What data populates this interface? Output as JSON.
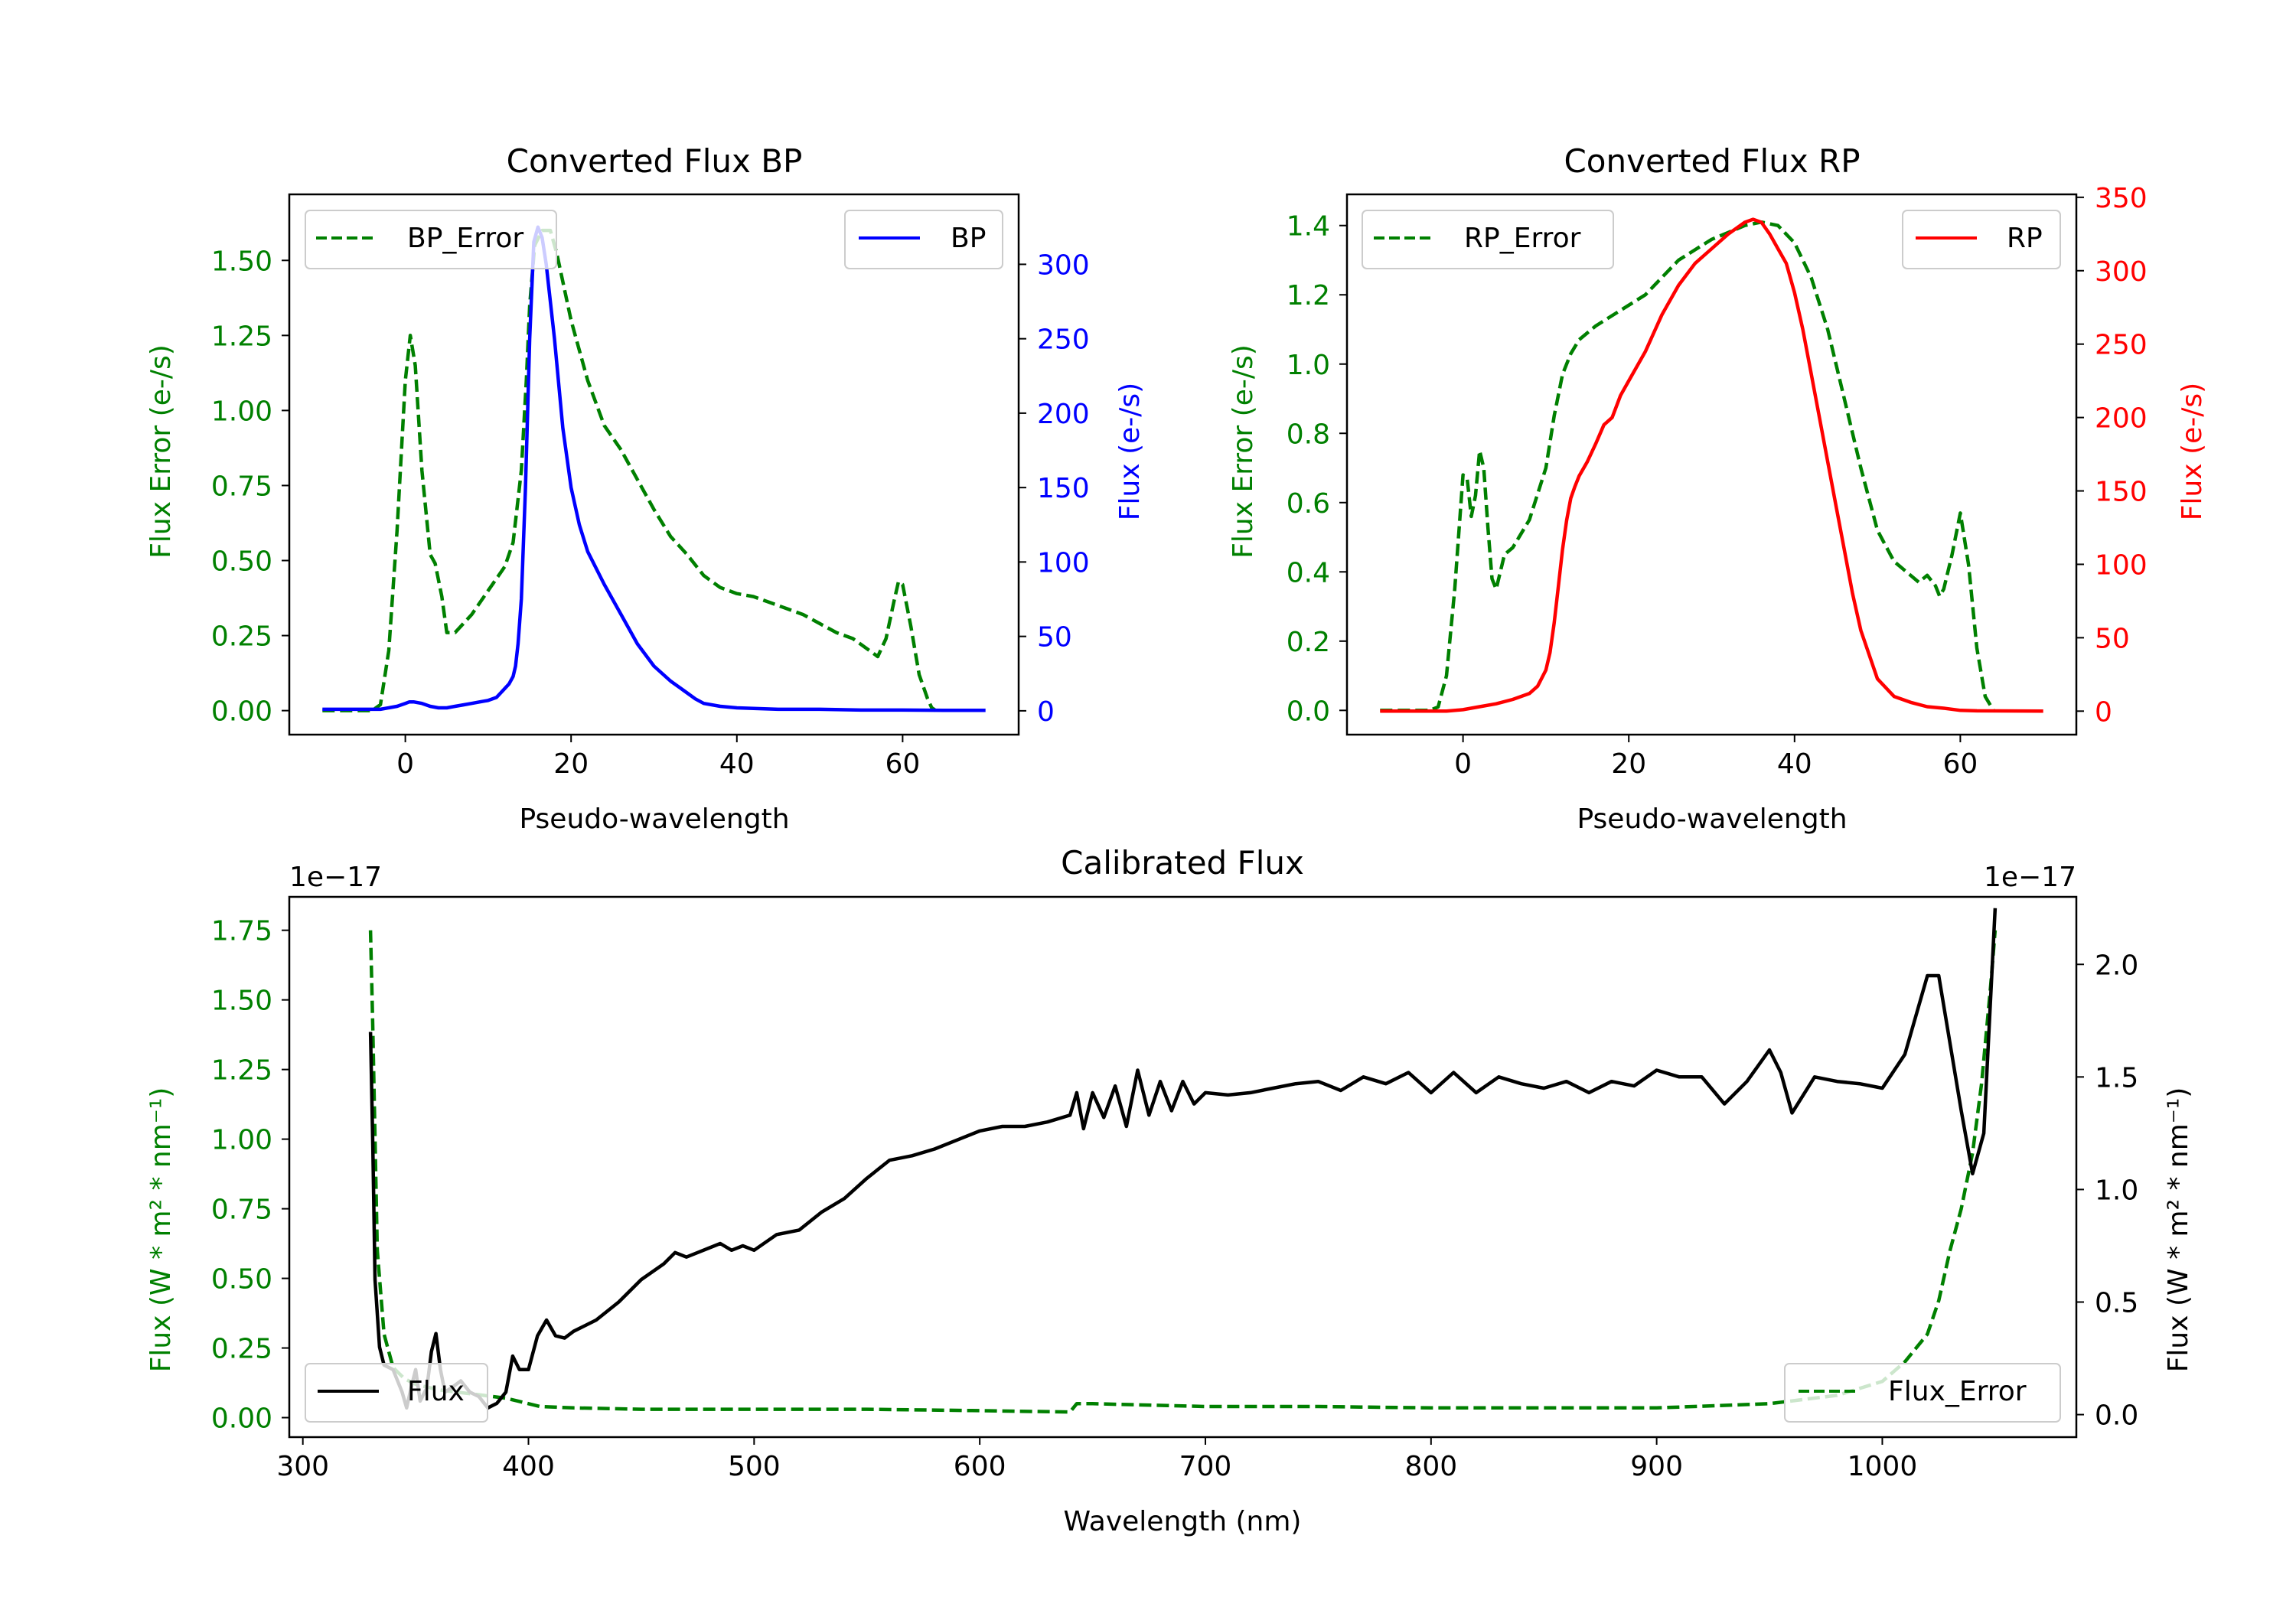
{
  "colors": {
    "bp": "#0000ff",
    "rp": "#ff0000",
    "error": "#008000",
    "flux": "#000000",
    "frame": "#000000"
  },
  "chart_data": [
    {
      "id": "bp",
      "type": "line",
      "title": "Converted Flux BP",
      "xlabel": "Pseudo-wavelength",
      "ylabel_left": "Flux Error (e-/s)",
      "ylabel_right": "Flux (e-/s)",
      "xlim": [
        -14,
        74
      ],
      "ylim_left": [
        -0.08,
        1.72
      ],
      "ylim_right": [
        -16,
        347
      ],
      "xticks": [
        0,
        20,
        40,
        60
      ],
      "yticks_left": [
        0.0,
        0.25,
        0.5,
        0.75,
        1.0,
        1.25,
        1.5
      ],
      "yticks_left_labels": [
        "0.00",
        "0.25",
        "0.50",
        "0.75",
        "1.00",
        "1.25",
        "1.50"
      ],
      "yticks_right": [
        0,
        50,
        100,
        150,
        200,
        250,
        300
      ],
      "yticks_right_labels": [
        "0",
        "50",
        "100",
        "150",
        "200",
        "250",
        "300"
      ],
      "legend_left": "BP_Error",
      "legend_right": "BP",
      "series": [
        {
          "name": "BP_Error",
          "axis": "left",
          "color": "#008000",
          "dash": true,
          "x": [
            -10,
            -4,
            -3,
            -2,
            -1,
            0,
            0.6,
            1.2,
            2,
            3,
            3.6,
            4.4,
            5,
            6,
            8,
            10,
            12,
            13,
            14,
            14.6,
            15,
            15.6,
            16.5,
            17.5,
            18.3,
            20,
            22,
            24,
            26,
            28,
            30,
            32,
            34,
            36,
            38,
            40,
            42,
            44,
            46,
            48,
            50,
            52,
            54,
            56,
            57,
            58,
            59,
            59.5,
            60,
            61,
            62,
            63,
            63.5,
            64
          ],
          "y": [
            0,
            0,
            0.02,
            0.2,
            0.6,
            1.1,
            1.25,
            1.15,
            0.8,
            0.52,
            0.49,
            0.38,
            0.26,
            0.26,
            0.32,
            0.4,
            0.48,
            0.56,
            0.8,
            1.1,
            1.35,
            1.55,
            1.6,
            1.6,
            1.52,
            1.3,
            1.1,
            0.95,
            0.87,
            0.77,
            0.67,
            0.58,
            0.52,
            0.45,
            0.41,
            0.39,
            0.38,
            0.36,
            0.34,
            0.32,
            0.29,
            0.26,
            0.24,
            0.2,
            0.18,
            0.24,
            0.37,
            0.43,
            0.42,
            0.28,
            0.12,
            0.04,
            0.01,
            0
          ]
        },
        {
          "name": "BP",
          "axis": "right",
          "color": "#0000ff",
          "dash": false,
          "x": [
            -10,
            -6,
            -3,
            -1,
            0,
            0.5,
            1,
            2,
            3,
            4,
            5,
            6,
            7,
            8,
            9,
            10,
            11,
            11.5,
            12,
            12.5,
            13,
            13.3,
            13.6,
            14,
            14.5,
            15,
            15.5,
            16,
            16.5,
            17,
            18,
            19,
            20,
            21,
            22,
            24,
            26,
            28,
            30,
            32,
            34,
            35,
            36,
            38,
            40,
            45,
            50,
            55,
            60,
            65,
            70
          ],
          "y": [
            1,
            1,
            1,
            3,
            5,
            6,
            6,
            5,
            3,
            2,
            2,
            3,
            4,
            5,
            6,
            7,
            9,
            12,
            15,
            18,
            23,
            30,
            45,
            75,
            150,
            250,
            315,
            325,
            318,
            300,
            250,
            190,
            150,
            125,
            107,
            85,
            65,
            45,
            30,
            20,
            12,
            8,
            5,
            3,
            2,
            1,
            1,
            0.5,
            0.5,
            0.3,
            0.3
          ]
        }
      ]
    },
    {
      "id": "rp",
      "type": "line",
      "title": "Converted Flux RP",
      "xlabel": "Pseudo-wavelength",
      "ylabel_left": "Flux Error (e-/s)",
      "ylabel_right": "Flux (e-/s)",
      "xlim": [
        -14,
        74
      ],
      "ylim_left": [
        -0.07,
        1.49
      ],
      "ylim_right": [
        -16,
        352
      ],
      "xticks": [
        0,
        20,
        40,
        60
      ],
      "yticks_left": [
        0.0,
        0.2,
        0.4,
        0.6,
        0.8,
        1.0,
        1.2,
        1.4
      ],
      "yticks_left_labels": [
        "0.0",
        "0.2",
        "0.4",
        "0.6",
        "0.8",
        "1.0",
        "1.2",
        "1.4"
      ],
      "yticks_right": [
        0,
        50,
        100,
        150,
        200,
        250,
        300,
        350
      ],
      "yticks_right_labels": [
        "0",
        "50",
        "100",
        "150",
        "200",
        "250",
        "300",
        "350"
      ],
      "legend_left": "RP_Error",
      "legend_right": "RP",
      "series": [
        {
          "name": "RP_Error",
          "axis": "left",
          "color": "#008000",
          "dash": true,
          "x": [
            -10,
            -4,
            -3,
            -2,
            -1,
            0,
            0.5,
            1,
            1.5,
            2,
            2.5,
            3,
            3.5,
            4,
            5,
            6,
            8,
            10,
            11,
            12,
            13,
            14,
            16,
            18,
            20,
            22,
            24,
            26,
            28,
            30,
            32,
            34,
            36,
            38,
            40,
            42,
            44,
            46,
            48,
            50,
            52,
            54,
            55,
            56,
            57,
            57.5,
            58,
            59,
            60,
            61,
            62,
            63,
            64
          ],
          "y": [
            0,
            0,
            0.01,
            0.1,
            0.35,
            0.68,
            0.67,
            0.56,
            0.62,
            0.75,
            0.7,
            0.53,
            0.38,
            0.35,
            0.45,
            0.47,
            0.55,
            0.7,
            0.85,
            0.97,
            1.03,
            1.07,
            1.11,
            1.14,
            1.17,
            1.2,
            1.25,
            1.3,
            1.33,
            1.36,
            1.38,
            1.4,
            1.41,
            1.4,
            1.35,
            1.25,
            1.1,
            0.9,
            0.7,
            0.52,
            0.43,
            0.39,
            0.37,
            0.39,
            0.36,
            0.33,
            0.35,
            0.45,
            0.57,
            0.42,
            0.18,
            0.04,
            0
          ]
        },
        {
          "name": "RP",
          "axis": "right",
          "color": "#ff0000",
          "dash": false,
          "x": [
            -10,
            -4,
            -2,
            0,
            2,
            4,
            6,
            8,
            9,
            10,
            10.5,
            11,
            11.5,
            12,
            12.5,
            13,
            13.5,
            14,
            15,
            16,
            17,
            18,
            19,
            20,
            22,
            24,
            26,
            28,
            30,
            32,
            34,
            35,
            36,
            37,
            38,
            39,
            40,
            41,
            42,
            43,
            44,
            45,
            46,
            47,
            48,
            50,
            52,
            54,
            56,
            58,
            60,
            62,
            70
          ],
          "y": [
            0,
            0,
            0,
            1,
            3,
            5,
            8,
            12,
            17,
            28,
            40,
            60,
            85,
            110,
            130,
            145,
            153,
            160,
            170,
            182,
            195,
            200,
            215,
            225,
            245,
            270,
            290,
            305,
            315,
            325,
            333,
            335,
            333,
            325,
            315,
            305,
            285,
            260,
            230,
            200,
            170,
            140,
            110,
            80,
            55,
            22,
            10,
            6,
            3,
            2,
            0.5,
            0.2,
            0
          ]
        }
      ]
    },
    {
      "id": "calibrated",
      "type": "line",
      "title": "Calibrated Flux",
      "xlabel": "Wavelength (nm)",
      "ylabel_left": "Flux (W * m² * nm⁻¹)",
      "ylabel_right": "Flux (W * m² * nm⁻¹)",
      "offset_left": "1e−17",
      "offset_right": "1e−17",
      "xlim": [
        294,
        1086
      ],
      "ylim_left": [
        -0.07,
        1.87
      ],
      "ylim_right": [
        -0.1,
        2.3
      ],
      "xticks": [
        300,
        400,
        500,
        600,
        700,
        800,
        900,
        1000
      ],
      "yticks_left": [
        0.0,
        0.25,
        0.5,
        0.75,
        1.0,
        1.25,
        1.5,
        1.75
      ],
      "yticks_left_labels": [
        "0.00",
        "0.25",
        "0.50",
        "0.75",
        "1.00",
        "1.25",
        "1.50",
        "1.75"
      ],
      "yticks_right": [
        0.0,
        0.5,
        1.0,
        1.5,
        2.0
      ],
      "yticks_right_labels": [
        "0.0",
        "0.5",
        "1.0",
        "1.5",
        "2.0"
      ],
      "legend_left": "Flux",
      "legend_right": "Flux_Error",
      "series": [
        {
          "name": "Flux_Error",
          "axis": "left",
          "color": "#008000",
          "dash": true,
          "x": [
            330,
            331,
            333,
            336,
            340,
            345,
            350,
            360,
            370,
            380,
            390,
            395,
            400,
            405,
            420,
            450,
            500,
            550,
            600,
            640,
            643,
            650,
            700,
            750,
            800,
            850,
            900,
            950,
            980,
            1000,
            1010,
            1020,
            1025,
            1030,
            1035,
            1040,
            1044,
            1048,
            1050
          ],
          "y": [
            1.75,
            1.4,
            0.6,
            0.3,
            0.18,
            0.14,
            0.12,
            0.1,
            0.09,
            0.08,
            0.07,
            0.06,
            0.05,
            0.04,
            0.035,
            0.03,
            0.03,
            0.03,
            0.025,
            0.02,
            0.05,
            0.05,
            0.04,
            0.04,
            0.035,
            0.035,
            0.035,
            0.05,
            0.08,
            0.13,
            0.2,
            0.3,
            0.42,
            0.6,
            0.75,
            0.95,
            1.2,
            1.55,
            1.75
          ]
        },
        {
          "name": "Flux",
          "axis": "right",
          "color": "#000000",
          "dash": false,
          "x": [
            330,
            331,
            332,
            334,
            336,
            340,
            344,
            346,
            348,
            350,
            352,
            355,
            357,
            359,
            361,
            363,
            366,
            370,
            374,
            378,
            382,
            386,
            390,
            393,
            396,
            400,
            404,
            408,
            412,
            416,
            420,
            430,
            440,
            450,
            460,
            465,
            470,
            475,
            480,
            485,
            490,
            495,
            500,
            510,
            520,
            530,
            540,
            550,
            560,
            570,
            580,
            590,
            600,
            610,
            620,
            630,
            640,
            643,
            646,
            650,
            655,
            660,
            665,
            670,
            675,
            680,
            685,
            690,
            695,
            700,
            710,
            720,
            730,
            740,
            750,
            760,
            770,
            780,
            790,
            800,
            810,
            820,
            830,
            840,
            850,
            860,
            870,
            880,
            890,
            900,
            910,
            920,
            930,
            940,
            950,
            955,
            960,
            970,
            980,
            990,
            1000,
            1010,
            1020,
            1025,
            1030,
            1035,
            1040,
            1045,
            1050
          ],
          "y": [
            1.7,
            1.2,
            0.6,
            0.3,
            0.22,
            0.2,
            0.1,
            0.03,
            0.12,
            0.2,
            0.06,
            0.12,
            0.28,
            0.36,
            0.2,
            0.1,
            0.12,
            0.15,
            0.1,
            0.08,
            0.03,
            0.05,
            0.1,
            0.26,
            0.2,
            0.2,
            0.35,
            0.42,
            0.35,
            0.34,
            0.37,
            0.42,
            0.5,
            0.6,
            0.67,
            0.72,
            0.7,
            0.72,
            0.74,
            0.76,
            0.73,
            0.75,
            0.73,
            0.8,
            0.82,
            0.9,
            0.96,
            1.05,
            1.13,
            1.15,
            1.18,
            1.22,
            1.26,
            1.28,
            1.28,
            1.3,
            1.33,
            1.43,
            1.27,
            1.43,
            1.32,
            1.46,
            1.28,
            1.53,
            1.33,
            1.48,
            1.35,
            1.48,
            1.38,
            1.43,
            1.42,
            1.43,
            1.45,
            1.47,
            1.48,
            1.44,
            1.5,
            1.47,
            1.52,
            1.43,
            1.52,
            1.43,
            1.5,
            1.47,
            1.45,
            1.48,
            1.43,
            1.48,
            1.46,
            1.53,
            1.5,
            1.5,
            1.38,
            1.48,
            1.62,
            1.52,
            1.34,
            1.5,
            1.48,
            1.47,
            1.45,
            1.6,
            1.95,
            1.95,
            1.65,
            1.35,
            1.07,
            1.25,
            2.25
          ]
        }
      ]
    }
  ]
}
